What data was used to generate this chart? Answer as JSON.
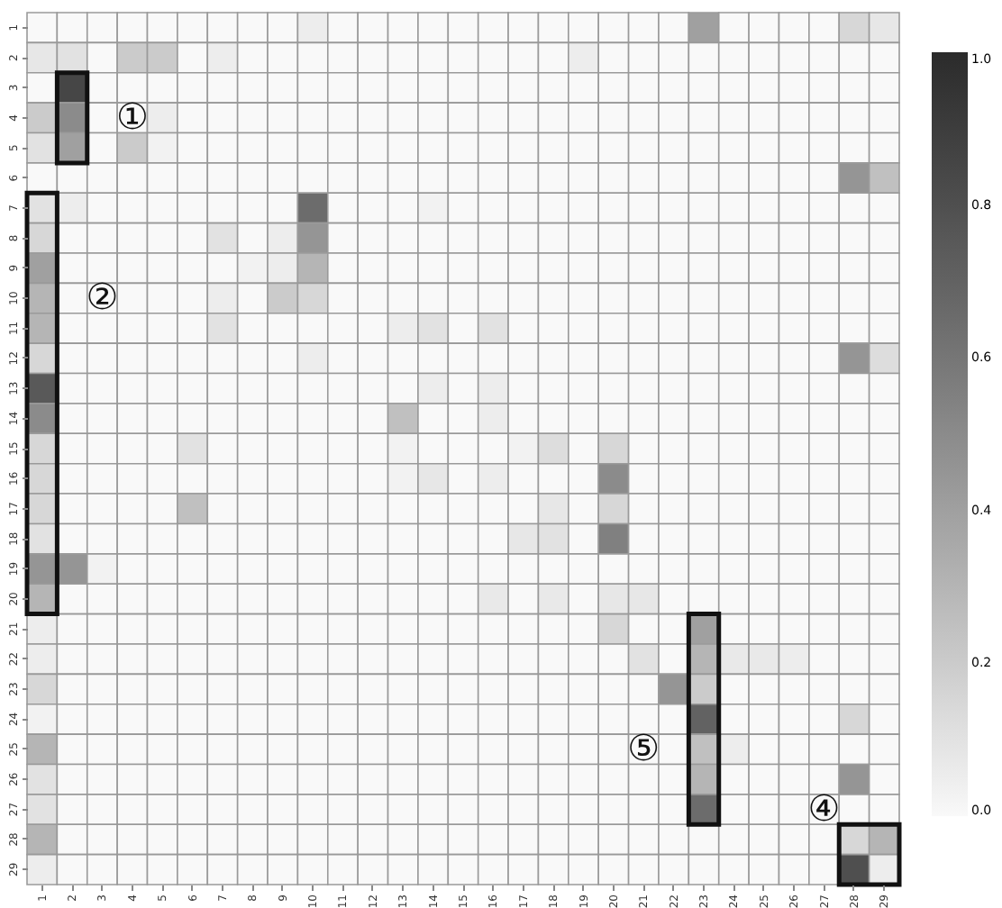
{
  "chart_data": {
    "type": "heatmap",
    "categories": [
      "1",
      "2",
      "3",
      "4",
      "5",
      "6",
      "7",
      "8",
      "9",
      "10",
      "11",
      "12",
      "13",
      "14",
      "15",
      "16",
      "17",
      "18",
      "19",
      "20",
      "21",
      "22",
      "23",
      "24",
      "25",
      "26",
      "27",
      "28",
      "29"
    ],
    "y_categories": [
      "1",
      "2",
      "3",
      "4",
      "5",
      "6",
      "7",
      "8",
      "9",
      "10",
      "11",
      "12",
      "13",
      "14",
      "15",
      "16",
      "17",
      "18",
      "19",
      "20",
      "21",
      "22",
      "23",
      "24",
      "25",
      "26",
      "27",
      "28",
      "29"
    ],
    "cells": [
      [
        0,
        0,
        0,
        0,
        0,
        0,
        0,
        0,
        0,
        0.05,
        0,
        0,
        0,
        0,
        0,
        0,
        0,
        0,
        0,
        0,
        0,
        0,
        0.4,
        0,
        0,
        0,
        0,
        0.15,
        0.08
      ],
      [
        0.08,
        0.1,
        0,
        0.2,
        0.2,
        0,
        0.05,
        0,
        0,
        0,
        0,
        0,
        0,
        0,
        0,
        0,
        0,
        0,
        0.05,
        0,
        0,
        0,
        0,
        0,
        0,
        0,
        0,
        0,
        0
      ],
      [
        0,
        0.85,
        0,
        0,
        0,
        0,
        0,
        0,
        0,
        0,
        0,
        0,
        0,
        0,
        0,
        0,
        0,
        0,
        0,
        0,
        0,
        0,
        0,
        0,
        0,
        0,
        0,
        0,
        0
      ],
      [
        0.2,
        0.5,
        0,
        0,
        0.05,
        0,
        0,
        0,
        0,
        0,
        0,
        0,
        0,
        0,
        0,
        0,
        0,
        0,
        0,
        0,
        0,
        0,
        0,
        0,
        0,
        0,
        0,
        0,
        0
      ],
      [
        0.1,
        0.4,
        0,
        0.2,
        0.03,
        0,
        0,
        0,
        0,
        0,
        0,
        0,
        0,
        0,
        0,
        0,
        0,
        0,
        0,
        0,
        0,
        0,
        0,
        0,
        0,
        0,
        0,
        0,
        0
      ],
      [
        0,
        0,
        0,
        0,
        0,
        0,
        0,
        0,
        0,
        0,
        0,
        0,
        0,
        0,
        0,
        0,
        0,
        0,
        0,
        0,
        0,
        0,
        0,
        0,
        0,
        0,
        0,
        0.45,
        0.25
      ],
      [
        0.1,
        0.05,
        0,
        0,
        0,
        0,
        0,
        0,
        0,
        0.65,
        0,
        0,
        0,
        0.03,
        0,
        0,
        0,
        0,
        0,
        0,
        0,
        0,
        0,
        0,
        0,
        0,
        0,
        0,
        0
      ],
      [
        0.15,
        0,
        0,
        0,
        0,
        0,
        0.1,
        0,
        0.05,
        0.45,
        0,
        0,
        0,
        0,
        0,
        0,
        0,
        0,
        0,
        0,
        0,
        0,
        0,
        0,
        0,
        0,
        0,
        0,
        0
      ],
      [
        0.4,
        0,
        0,
        0,
        0,
        0,
        0,
        0.03,
        0.05,
        0.3,
        0,
        0,
        0,
        0,
        0,
        0,
        0,
        0,
        0,
        0,
        0,
        0,
        0,
        0,
        0,
        0,
        0,
        0,
        0
      ],
      [
        0.3,
        0,
        0,
        0,
        0,
        0,
        0.05,
        0,
        0.2,
        0.15,
        0,
        0,
        0,
        0,
        0,
        0,
        0,
        0,
        0,
        0,
        0,
        0,
        0,
        0,
        0,
        0,
        0,
        0,
        0
      ],
      [
        0.3,
        0,
        0,
        0,
        0,
        0,
        0.1,
        0,
        0,
        0,
        0,
        0,
        0.05,
        0.1,
        0,
        0.1,
        0,
        0,
        0,
        0,
        0,
        0,
        0,
        0,
        0,
        0,
        0,
        0,
        0
      ],
      [
        0.15,
        0,
        0,
        0,
        0,
        0,
        0,
        0,
        0,
        0.05,
        0,
        0,
        0,
        0,
        0,
        0,
        0,
        0,
        0,
        0,
        0,
        0,
        0,
        0,
        0,
        0,
        0,
        0.45,
        0.12
      ],
      [
        0.75,
        0,
        0,
        0,
        0,
        0,
        0,
        0,
        0,
        0,
        0,
        0,
        0,
        0.05,
        0,
        0.05,
        0,
        0,
        0,
        0,
        0,
        0,
        0,
        0,
        0,
        0,
        0,
        0,
        0
      ],
      [
        0.5,
        0,
        0,
        0,
        0,
        0,
        0,
        0,
        0,
        0,
        0,
        0,
        0.25,
        0,
        0,
        0.05,
        0,
        0,
        0,
        0,
        0,
        0,
        0,
        0,
        0,
        0,
        0,
        0,
        0
      ],
      [
        0.15,
        0,
        0,
        0,
        0,
        0.1,
        0,
        0,
        0,
        0,
        0,
        0,
        0.03,
        0,
        0,
        0,
        0.03,
        0.12,
        0,
        0.15,
        0,
        0,
        0,
        0,
        0,
        0,
        0,
        0,
        0
      ],
      [
        0.15,
        0,
        0,
        0,
        0,
        0,
        0,
        0,
        0,
        0,
        0,
        0,
        0.03,
        0.08,
        0,
        0.05,
        0,
        0,
        0,
        0.5,
        0,
        0,
        0,
        0,
        0,
        0,
        0,
        0,
        0
      ],
      [
        0.15,
        0,
        0,
        0,
        0,
        0.25,
        0,
        0,
        0,
        0,
        0,
        0,
        0,
        0,
        0,
        0,
        0,
        0.08,
        0,
        0.15,
        0,
        0,
        0,
        0,
        0,
        0,
        0,
        0,
        0
      ],
      [
        0.1,
        0,
        0,
        0,
        0,
        0,
        0,
        0,
        0,
        0,
        0,
        0,
        0,
        0,
        0,
        0,
        0.08,
        0.1,
        0,
        0.55,
        0,
        0,
        0,
        0,
        0,
        0,
        0,
        0,
        0
      ],
      [
        0.45,
        0.45,
        0.03,
        0,
        0,
        0,
        0,
        0,
        0,
        0,
        0,
        0,
        0,
        0,
        0,
        0,
        0,
        0,
        0,
        0,
        0,
        0,
        0,
        0,
        0,
        0,
        0,
        0,
        0
      ],
      [
        0.3,
        0,
        0,
        0,
        0,
        0,
        0,
        0,
        0,
        0,
        0,
        0,
        0,
        0,
        0,
        0.07,
        0,
        0.07,
        0,
        0.08,
        0.08,
        0,
        0,
        0,
        0,
        0,
        0,
        0,
        0
      ],
      [
        0.05,
        0,
        0,
        0,
        0,
        0,
        0,
        0,
        0,
        0,
        0,
        0,
        0,
        0,
        0,
        0,
        0,
        0,
        0,
        0.15,
        0,
        0,
        0.4,
        0,
        0,
        0,
        0,
        0,
        0
      ],
      [
        0.05,
        0,
        0,
        0,
        0,
        0,
        0,
        0,
        0,
        0,
        0,
        0,
        0,
        0,
        0,
        0,
        0,
        0,
        0,
        0,
        0.1,
        0,
        0.3,
        0.07,
        0.07,
        0.05,
        0,
        0,
        0
      ],
      [
        0.15,
        0,
        0,
        0,
        0,
        0,
        0,
        0,
        0,
        0,
        0,
        0,
        0,
        0,
        0,
        0,
        0,
        0,
        0,
        0,
        0,
        0.45,
        0.2,
        0,
        0,
        0,
        0,
        0,
        0
      ],
      [
        0.03,
        0,
        0,
        0,
        0,
        0,
        0,
        0,
        0,
        0,
        0,
        0,
        0,
        0,
        0,
        0,
        0,
        0,
        0,
        0,
        0,
        0,
        0.7,
        0,
        0,
        0,
        0,
        0.15,
        0
      ],
      [
        0.3,
        0,
        0,
        0,
        0,
        0,
        0,
        0,
        0,
        0,
        0,
        0,
        0,
        0,
        0,
        0,
        0,
        0,
        0,
        0,
        0,
        0,
        0.25,
        0.05,
        0,
        0,
        0,
        0,
        0
      ],
      [
        0.1,
        0,
        0,
        0,
        0,
        0,
        0,
        0,
        0,
        0,
        0,
        0,
        0,
        0,
        0,
        0,
        0,
        0,
        0,
        0,
        0,
        0,
        0.3,
        0,
        0,
        0,
        0,
        0.45,
        0
      ],
      [
        0.1,
        0,
        0,
        0,
        0,
        0,
        0,
        0,
        0,
        0,
        0,
        0,
        0,
        0,
        0,
        0,
        0,
        0,
        0,
        0,
        0,
        0,
        0.65,
        0,
        0,
        0,
        0,
        0,
        0
      ],
      [
        0.3,
        0,
        0,
        0,
        0,
        0,
        0,
        0,
        0,
        0,
        0,
        0,
        0,
        0,
        0,
        0,
        0,
        0,
        0,
        0,
        0,
        0,
        0,
        0,
        0,
        0,
        0,
        0.15,
        0.3
      ],
      [
        0.05,
        0,
        0,
        0,
        0,
        0,
        0,
        0,
        0,
        0,
        0,
        0,
        0,
        0,
        0,
        0,
        0,
        0,
        0,
        0,
        0,
        0,
        0,
        0,
        0,
        0,
        0,
        0.8,
        0.05
      ]
    ],
    "clim": [
      0,
      1
    ],
    "cticks": [
      {
        "value": 0,
        "label": "0.0"
      },
      {
        "value": 0.2,
        "label": "0.2"
      },
      {
        "value": 0.4,
        "label": "0.4"
      },
      {
        "value": 0.6,
        "label": "0.6"
      },
      {
        "value": 0.8,
        "label": "0.8"
      },
      {
        "value": 1,
        "label": "1.0"
      }
    ],
    "annotations": [
      "①",
      "②",
      "⑤",
      "④"
    ]
  }
}
